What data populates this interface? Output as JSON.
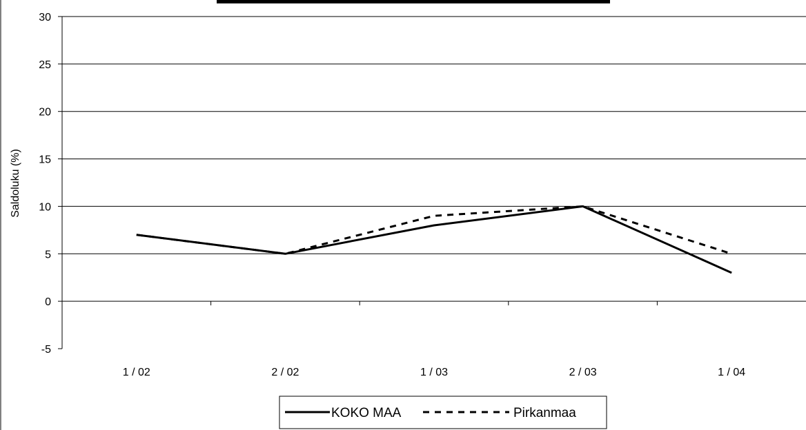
{
  "chart_data": {
    "type": "line",
    "title": "",
    "xlabel": "",
    "ylabel": "Saldoluku (%)",
    "categories": [
      "1 / 02",
      "2 / 02",
      "1 / 03",
      "2 / 03",
      "1 / 04"
    ],
    "ylim": [
      -5,
      30
    ],
    "yticks": [
      -5,
      0,
      5,
      10,
      15,
      20,
      25,
      30
    ],
    "grid": true,
    "legend_position": "bottom",
    "series": [
      {
        "name": "KOKO MAA",
        "values": [
          7,
          5,
          8,
          10,
          3
        ],
        "style": "solid",
        "color": "#000000"
      },
      {
        "name": "Pirkanmaa",
        "values": [
          7,
          5,
          9,
          10,
          5
        ],
        "style": "dashed",
        "color": "#000000"
      }
    ]
  }
}
